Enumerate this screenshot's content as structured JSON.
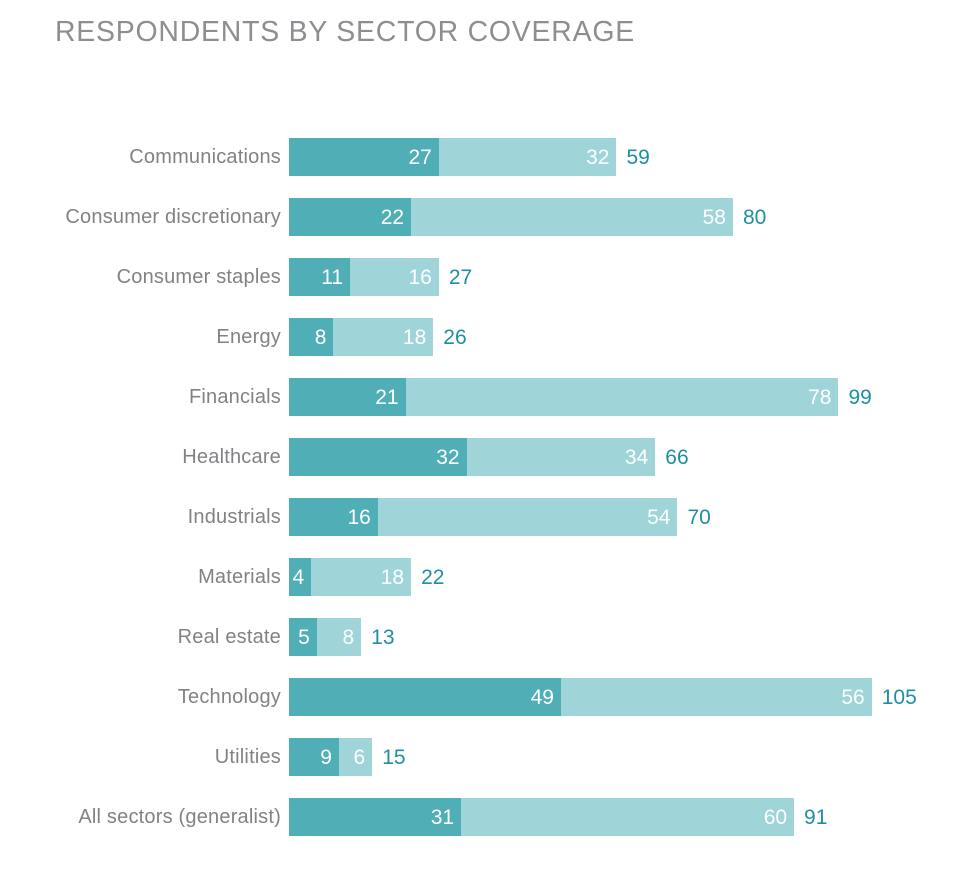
{
  "colors": {
    "background": "#FFFFFF",
    "primary_segment": "#4FAEB6",
    "secondary_segment": "#9FD4D9",
    "value_text": "#FFFFFF",
    "total_text": "#1E8FA3",
    "category_text": "#808285",
    "title_text": "#8C8E91"
  },
  "chart_data": {
    "type": "bar",
    "variant": "horizontal-stacked",
    "title": "RESPONDENTS BY SECTOR COVERAGE",
    "categories": [
      "Communications",
      "Consumer discretionary",
      "Consumer staples",
      "Energy",
      "Financials",
      "Healthcare",
      "Industrials",
      "Materials",
      "Real estate",
      "Technology",
      "Utilities",
      "All sectors (generalist)"
    ],
    "series": [
      {
        "name": "primary",
        "values": [
          27,
          22,
          11,
          8,
          21,
          32,
          16,
          4,
          5,
          49,
          9,
          31
        ]
      },
      {
        "name": "secondary",
        "values": [
          32,
          58,
          16,
          18,
          78,
          34,
          54,
          18,
          8,
          56,
          6,
          60
        ]
      }
    ],
    "totals": [
      59,
      80,
      27,
      26,
      99,
      66,
      70,
      22,
      13,
      105,
      15,
      91
    ],
    "xlim": [
      0,
      105
    ],
    "grid": false,
    "legend": false,
    "value_labels": "inside-right",
    "total_labels": "right-of-bar"
  }
}
